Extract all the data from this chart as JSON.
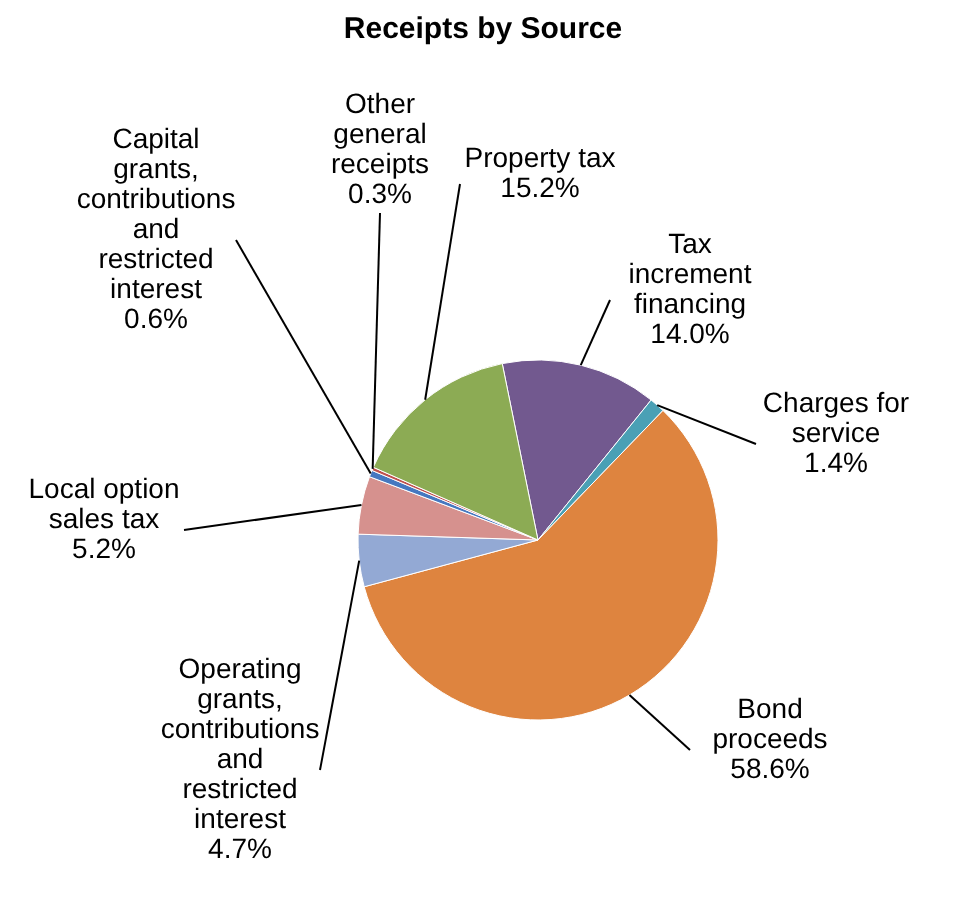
{
  "chart_data": {
    "type": "pie",
    "title": "Receipts by Source",
    "categories": [
      "Tax increment financing",
      "Charges for service",
      "Bond proceeds",
      "Operating grants, contributions and restricted interest",
      "Local option sales tax",
      "Capital grants, contributions and restricted interest",
      "Other general receipts",
      "Property tax"
    ],
    "values": [
      14.0,
      1.4,
      58.6,
      4.7,
      5.2,
      0.6,
      0.3,
      15.2
    ],
    "value_labels": [
      "14.0%",
      "1.4%",
      "58.6%",
      "4.7%",
      "5.2%",
      "0.6%",
      "0.3%",
      "15.2%"
    ],
    "colors": [
      "#72598f",
      "#4aa0b5",
      "#de843f",
      "#93a9d4",
      "#d6918e",
      "#4678c0",
      "#c0504d",
      "#8cab54"
    ]
  }
}
